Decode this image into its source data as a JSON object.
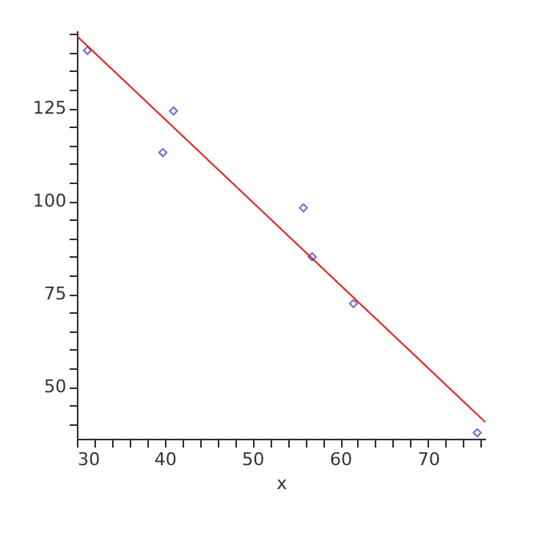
{
  "chart_data": {
    "type": "scatter",
    "xlabel": "x",
    "xlim": [
      30,
      76.5
    ],
    "ylim": [
      36,
      146
    ],
    "grid": false,
    "xticks": [
      30,
      {
        "value": 32,
        "label": null
      },
      {
        "value": 34,
        "label": null
      },
      {
        "value": 36,
        "label": null
      },
      {
        "value": 38,
        "label": null
      },
      40,
      {
        "value": 42,
        "label": null
      },
      {
        "value": 44,
        "label": null
      },
      {
        "value": 46,
        "label": null
      },
      {
        "value": 48,
        "label": null
      },
      50,
      {
        "value": 52,
        "label": null
      },
      {
        "value": 54,
        "label": null
      },
      {
        "value": 56,
        "label": null
      },
      {
        "value": 58,
        "label": null
      },
      60,
      {
        "value": 62,
        "label": null
      },
      {
        "value": 64,
        "label": null
      },
      {
        "value": 66,
        "label": null
      },
      {
        "value": 68,
        "label": null
      },
      70,
      {
        "value": 72,
        "label": null
      },
      {
        "value": 74,
        "label": null
      },
      {
        "value": 76,
        "label": null
      }
    ],
    "yticks": [
      {
        "value": 40,
        "label": null
      },
      {
        "value": 45,
        "label": null
      },
      50,
      {
        "value": 55,
        "label": null
      },
      {
        "value": 60,
        "label": null
      },
      {
        "value": 65,
        "label": null
      },
      {
        "value": 70,
        "label": null
      },
      75,
      {
        "value": 80,
        "label": null
      },
      {
        "value": 85,
        "label": null
      },
      {
        "value": 90,
        "label": null
      },
      {
        "value": 95,
        "label": null
      },
      100,
      {
        "value": 105,
        "label": null
      },
      {
        "value": 110,
        "label": null
      },
      {
        "value": 115,
        "label": null
      },
      {
        "value": 120,
        "label": null
      },
      125,
      {
        "value": 130,
        "label": null
      },
      {
        "value": 135,
        "label": null
      },
      {
        "value": 140,
        "label": null
      },
      {
        "value": 145,
        "label": null
      }
    ],
    "series": [
      {
        "type": "scatter",
        "marker": "diamond",
        "color": "#3333cc",
        "x": [
          31.2,
          39.8,
          41.0,
          55.8,
          56.8,
          61.5,
          75.6
        ],
        "values": [
          140.6,
          113.1,
          124.3,
          98.2,
          85.0,
          72.4,
          37.6
        ]
      },
      {
        "type": "line",
        "marker": "none",
        "line_style": "solid",
        "color": "#e02020",
        "x": [
          30,
          76.5
        ],
        "values": [
          144.5,
          40.5
        ]
      }
    ]
  }
}
